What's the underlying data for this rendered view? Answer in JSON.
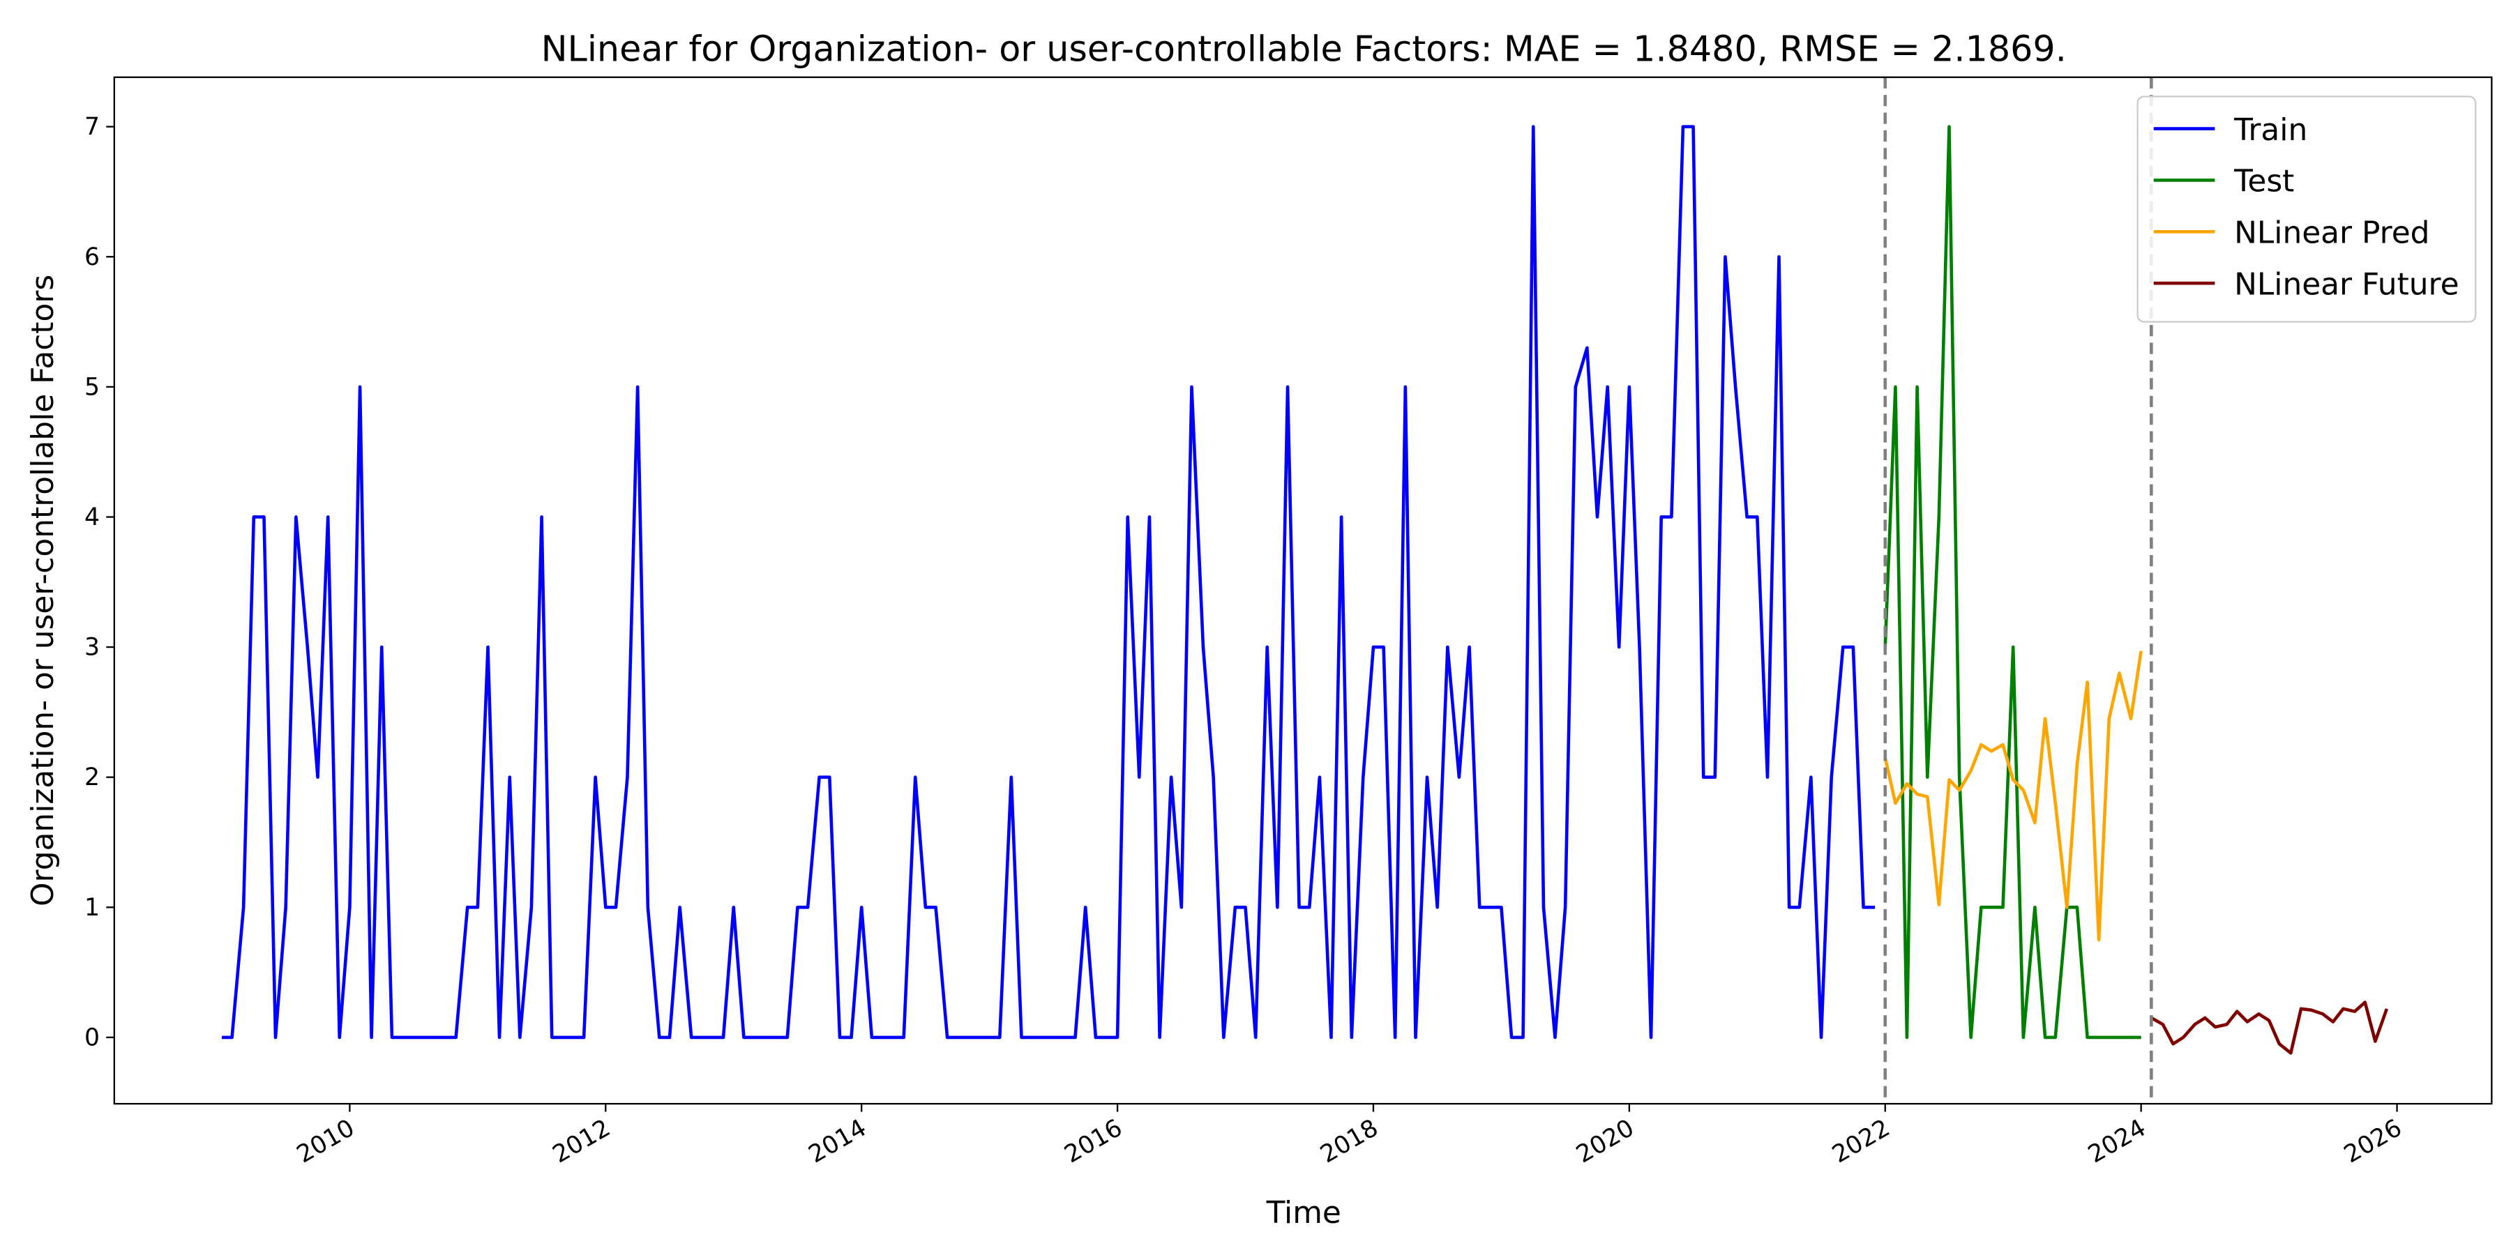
{
  "chart_data": {
    "type": "line",
    "title": "NLinear for Organization- or user-controllable Factors: MAE = 1.8480, RMSE = 2.1869.",
    "x_label": "Time",
    "y_label": "Organization- or user-controllable Factors",
    "xlim": [
      2008.16,
      2026.74
    ],
    "ylim": [
      -0.51,
      7.38
    ],
    "xticks": [
      2010,
      2012,
      2014,
      2016,
      2018,
      2020,
      2022,
      2024,
      2026
    ],
    "yticks": [
      0,
      1,
      2,
      3,
      4,
      5,
      6,
      7
    ],
    "vlines": [
      2022,
      2024.08
    ],
    "legend": "upper right",
    "series": [
      {
        "name": "Train",
        "color": "#0000ff",
        "x": [
          2009,
          2009.08,
          2009.17,
          2009.25,
          2009.33,
          2009.42,
          2009.5,
          2009.58,
          2009.67,
          2009.75,
          2009.83,
          2009.92,
          2010,
          2010.08,
          2010.17,
          2010.25,
          2010.33,
          2010.42,
          2010.5,
          2010.58,
          2010.67,
          2010.75,
          2010.83,
          2010.92,
          2011,
          2011.08,
          2011.17,
          2011.25,
          2011.33,
          2011.42,
          2011.5,
          2011.58,
          2011.67,
          2011.75,
          2011.83,
          2011.92,
          2012,
          2012.08,
          2012.17,
          2012.25,
          2012.33,
          2012.42,
          2012.5,
          2012.58,
          2012.67,
          2012.75,
          2012.83,
          2012.92,
          2013,
          2013.08,
          2013.17,
          2013.25,
          2013.33,
          2013.42,
          2013.5,
          2013.58,
          2013.67,
          2013.75,
          2013.83,
          2013.92,
          2014,
          2014.08,
          2014.17,
          2014.25,
          2014.33,
          2014.42,
          2014.5,
          2014.58,
          2014.67,
          2014.75,
          2014.83,
          2014.92,
          2015,
          2015.08,
          2015.17,
          2015.25,
          2015.33,
          2015.42,
          2015.5,
          2015.58,
          2015.67,
          2015.75,
          2015.83,
          2015.92,
          2016,
          2016.08,
          2016.17,
          2016.25,
          2016.33,
          2016.42,
          2016.5,
          2016.58,
          2016.67,
          2016.75,
          2016.83,
          2016.92,
          2017,
          2017.08,
          2017.17,
          2017.25,
          2017.33,
          2017.42,
          2017.5,
          2017.58,
          2017.67,
          2017.75,
          2017.83,
          2017.92,
          2018,
          2018.08,
          2018.17,
          2018.25,
          2018.33,
          2018.42,
          2018.5,
          2018.58,
          2018.67,
          2018.75,
          2018.83,
          2018.92,
          2019,
          2019.08,
          2019.17,
          2019.25,
          2019.33,
          2019.42,
          2019.5,
          2019.58,
          2019.67,
          2019.75,
          2019.83,
          2019.92,
          2020,
          2020.08,
          2020.17,
          2020.25,
          2020.33,
          2020.42,
          2020.5,
          2020.58,
          2020.67,
          2020.75,
          2020.83,
          2020.92,
          2021,
          2021.08,
          2021.17,
          2021.25,
          2021.33,
          2021.42,
          2021.5,
          2021.58,
          2021.67,
          2021.75,
          2021.83,
          2021.92
        ],
        "values": [
          0,
          0,
          1,
          4,
          4,
          0,
          1,
          4,
          3,
          2,
          4,
          0,
          1,
          5,
          0,
          3,
          0,
          0,
          0,
          0,
          0,
          0,
          0,
          1,
          1,
          3,
          0,
          2,
          0,
          1,
          4,
          0,
          0,
          0,
          0,
          2,
          1,
          1,
          2,
          5,
          1,
          0,
          0,
          1,
          0,
          0,
          0,
          0,
          1,
          0,
          0,
          0,
          0,
          0,
          1,
          1,
          2,
          2,
          0,
          0,
          1,
          0,
          0,
          0,
          0,
          2,
          1,
          1,
          0,
          0,
          0,
          0,
          0,
          0,
          2,
          0,
          0,
          0,
          0,
          0,
          0,
          1,
          0,
          0,
          0,
          4,
          2,
          4,
          0,
          2,
          1,
          5,
          3,
          2,
          0,
          1,
          1,
          0,
          3,
          1,
          5,
          1,
          1,
          2,
          0,
          4,
          0,
          2,
          3,
          3,
          0,
          5,
          0,
          2,
          1,
          3,
          2,
          3,
          1,
          1,
          1,
          0,
          0,
          7,
          1,
          0,
          1,
          5,
          5.3,
          4,
          5,
          3,
          5,
          3,
          0,
          4,
          4,
          7,
          7,
          2,
          2,
          6,
          5,
          4,
          4,
          2,
          6,
          1,
          1,
          2,
          0,
          2,
          3,
          3,
          1,
          1
        ]
      },
      {
        "name": "Test",
        "color": "#008000",
        "x": [
          2022,
          2022.08,
          2022.17,
          2022.25,
          2022.33,
          2022.42,
          2022.5,
          2022.58,
          2022.67,
          2022.75,
          2022.83,
          2022.92,
          2023,
          2023.08,
          2023.17,
          2023.25,
          2023.33,
          2023.42,
          2023.5,
          2023.58,
          2023.67,
          2023.75,
          2023.83,
          2023.92,
          2024
        ],
        "values": [
          3,
          5,
          0,
          5,
          2,
          4,
          7,
          2,
          0,
          1,
          1,
          1,
          3,
          0,
          1,
          0,
          0,
          1,
          1,
          0,
          0,
          0,
          0,
          0,
          0
        ]
      },
      {
        "name": "NLinear Pred",
        "color": "#ffa500",
        "x": [
          2022,
          2022.08,
          2022.17,
          2022.25,
          2022.33,
          2022.42,
          2022.5,
          2022.58,
          2022.67,
          2022.75,
          2022.83,
          2022.92,
          2023,
          2023.08,
          2023.17,
          2023.25,
          2023.33,
          2023.42,
          2023.5,
          2023.58,
          2023.67,
          2023.75,
          2023.83,
          2023.92,
          2024
        ],
        "values": [
          2.15,
          1.8,
          1.95,
          1.87,
          1.85,
          1.02,
          1.98,
          1.9,
          2.05,
          2.25,
          2.2,
          2.25,
          1.98,
          1.9,
          1.65,
          2.45,
          1.8,
          1.0,
          2.1,
          2.73,
          0.75,
          2.45,
          2.8,
          2.45,
          2.97
        ]
      },
      {
        "name": "NLinear Future",
        "color": "#800000",
        "x": [
          2024.08,
          2024.17,
          2024.25,
          2024.33,
          2024.42,
          2024.5,
          2024.58,
          2024.67,
          2024.75,
          2024.83,
          2024.92,
          2025,
          2025.08,
          2025.17,
          2025.25,
          2025.33,
          2025.42,
          2025.5,
          2025.58,
          2025.67,
          2025.75,
          2025.83,
          2025.92
        ],
        "values": [
          0.15,
          0.1,
          -0.05,
          0,
          0.1,
          0.15,
          0.08,
          0.1,
          0.2,
          0.12,
          0.18,
          0.13,
          -0.05,
          -0.12,
          0.22,
          0.21,
          0.18,
          0.12,
          0.22,
          0.2,
          0.27,
          -0.03,
          0.22
        ]
      }
    ]
  }
}
